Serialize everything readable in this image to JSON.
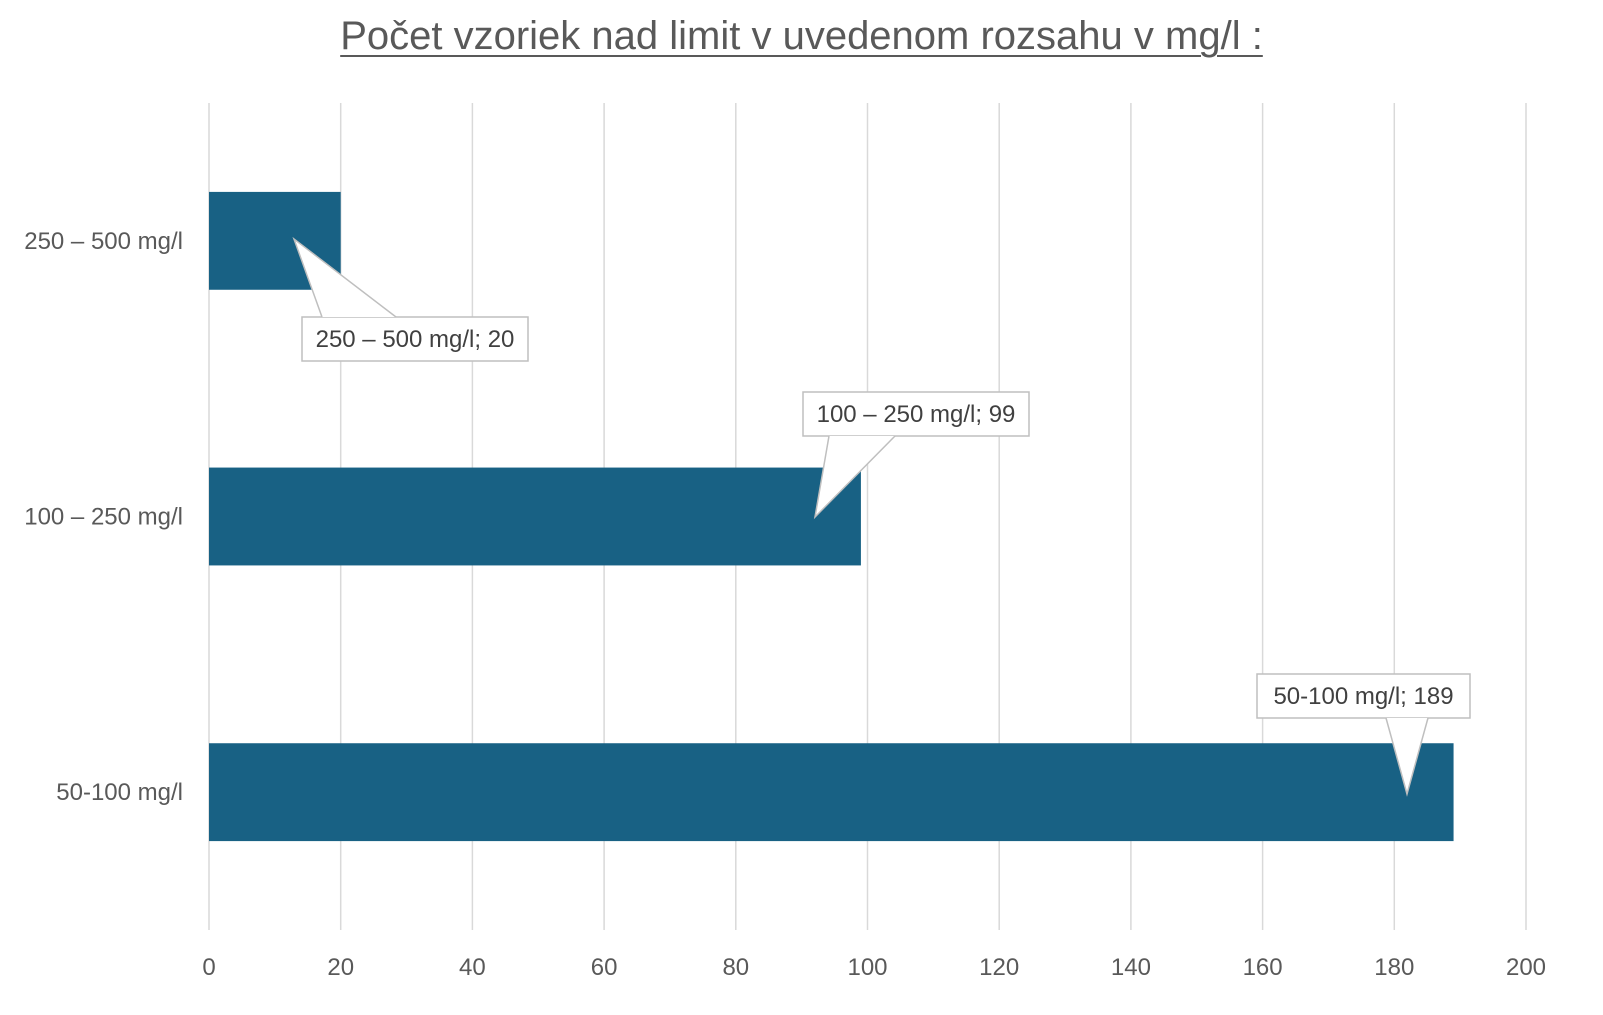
{
  "chart_data": {
    "type": "bar",
    "orientation": "horizontal",
    "title": "Počet vzoriek nad limit v uvedenom rozsahu v mg/l :",
    "categories": [
      "250 – 500 mg/l",
      "100 – 250 mg/l",
      "50-100 mg/l"
    ],
    "values": [
      20,
      99,
      189
    ],
    "xlim": [
      0,
      200
    ],
    "xticks": [
      "0",
      "20",
      "40",
      "60",
      "80",
      "100",
      "120",
      "140",
      "160",
      "180",
      "200"
    ],
    "grid": "vertical",
    "bar_color": "#186184",
    "data_labels": [
      "250 – 500 mg/l; 20",
      "100 – 250 mg/l; 99",
      "50-100 mg/l; 189"
    ]
  }
}
